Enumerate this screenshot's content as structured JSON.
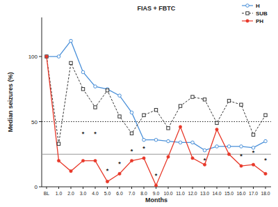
{
  "chart_data": {
    "type": "line",
    "title": "FIAS + FBTC",
    "x_label": "Months",
    "y_label": "Median seizures (%)",
    "categories": [
      "BL",
      "1.0",
      "2.0",
      "3.0",
      "4.0",
      "5.0",
      "6.0",
      "7.0",
      "8.0",
      "9.0",
      "10.0",
      "11.0",
      "12.0",
      "13.0",
      "14.0",
      "15.0",
      "16.0",
      "17.0",
      "18.0"
    ],
    "series": [
      {
        "name": "H",
        "color": "#4a90d9",
        "marker": "circle",
        "line_style": "solid",
        "values": [
          100,
          100,
          112,
          88,
          77,
          75,
          70,
          57,
          36,
          36,
          35,
          34,
          34,
          28,
          31,
          31,
          31,
          30,
          35
        ]
      },
      {
        "name": "SUB",
        "color": "#333333",
        "marker": "square",
        "line_style": "dashed",
        "values": [
          100,
          33,
          95,
          75,
          61,
          74,
          54,
          41,
          55,
          59,
          45,
          62,
          69,
          67,
          49,
          66,
          63,
          40,
          55
        ]
      },
      {
        "name": "PH",
        "color": "#e8392a",
        "marker": "dot",
        "line_style": "solid",
        "values": [
          100,
          20,
          12,
          20,
          20,
          4,
          10,
          20,
          22,
          1,
          23,
          46,
          22,
          17,
          44,
          25,
          16,
          17,
          10
        ]
      }
    ],
    "reference_lines": [
      {
        "value": 50,
        "line_style": "dotted"
      },
      {
        "value": 25,
        "line_style": "solid"
      }
    ],
    "annotations": [
      {
        "text": "*",
        "category": "3.0",
        "y": 41
      },
      {
        "text": "*",
        "category": "4.0",
        "y": 41
      },
      {
        "text": "*",
        "category": "5.0",
        "y": 13
      },
      {
        "text": "*",
        "category": "6.0",
        "y": 18
      },
      {
        "text": "*",
        "category": "7.0",
        "y": 28
      },
      {
        "text": "*",
        "category": "8.0",
        "y": 30
      },
      {
        "text": "*",
        "category": "9.0",
        "y": 9
      },
      {
        "text": "*",
        "category": "13.0",
        "y": 21
      },
      {
        "text": "*",
        "category": "16.0",
        "y": 24
      },
      {
        "text": "*",
        "category": "17.0",
        "y": 27
      },
      {
        "text": "*",
        "category": "18.0",
        "y": 21
      }
    ],
    "ylim": [
      0,
      130
    ],
    "yticks": [
      0,
      50,
      100
    ],
    "legend": "top-right",
    "grid": false
  }
}
